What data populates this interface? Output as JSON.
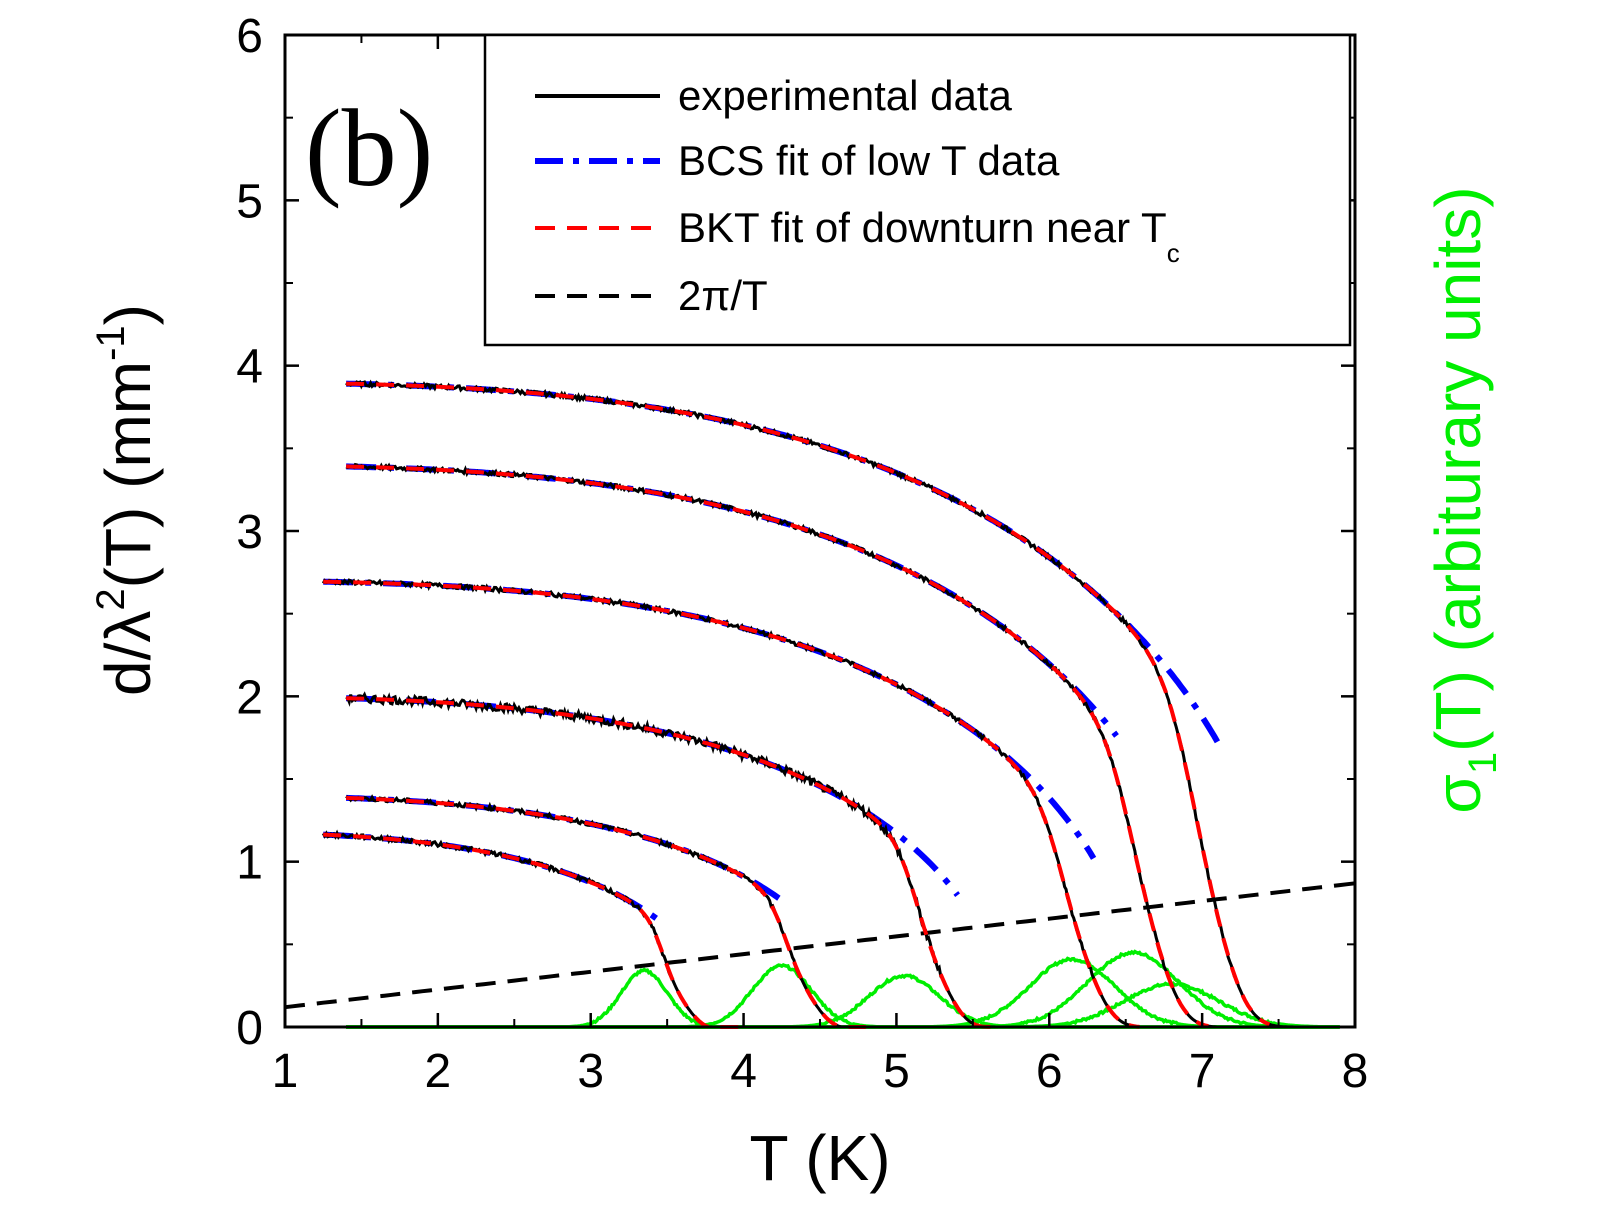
{
  "chart_data": {
    "type": "line",
    "panel_label": "(b)",
    "xlabel": "T   (K)",
    "ylabel_left": "d/λ²(T)   (mm⁻¹)",
    "ylabel_left_parts": {
      "main": "d/λ",
      "sup1": "2",
      "mid": "(T)   (mm",
      "sup2": "-1",
      "end": ")"
    },
    "ylabel_right": "σ₁(T)  (arbiturary units)",
    "ylabel_right_parts": {
      "main": "σ",
      "sub": "1",
      "rest": "(T)  (arbiturary units)"
    },
    "xlim": [
      1,
      8
    ],
    "ylim": [
      0,
      6
    ],
    "x_ticks": [
      "1",
      "2",
      "3",
      "4",
      "5",
      "6",
      "7",
      "8"
    ],
    "y_ticks": [
      "0",
      "1",
      "2",
      "3",
      "4",
      "5",
      "6"
    ],
    "legend": {
      "placement": "top-right",
      "entries": [
        {
          "label": "experimental data",
          "color": "#000000",
          "style": "solid"
        },
        {
          "label": "BCS fit of low T data",
          "color": "#0000ff",
          "style": "dash-dot"
        },
        {
          "label": "BKT fit of downturn near T",
          "label_sub": "c",
          "color": "#ff0000",
          "style": "dashed"
        },
        {
          "label": "2π/T",
          "color": "#000000",
          "style": "dashed"
        }
      ]
    },
    "colors": {
      "experimental": "#000000",
      "bcs": "#0000ff",
      "bkt": "#ff0000",
      "reference": "#000000",
      "sigma": "#00ee00"
    },
    "films": [
      {
        "amp": 3.9,
        "tmin": 1.4,
        "tc": 7.6,
        "tbkt": 6.9,
        "bcs_end": 7.1,
        "sigma_peak": 6.8,
        "sigma_amp": 0.26
      },
      {
        "amp": 3.4,
        "tmin": 1.4,
        "tc": 7.1,
        "tbkt": 6.5,
        "bcs_end": 6.45,
        "sigma_peak": 6.55,
        "sigma_amp": 0.45
      },
      {
        "amp": 2.7,
        "tmin": 1.25,
        "tc": 6.6,
        "tbkt": 6.05,
        "bcs_end": 6.3,
        "sigma_peak": 6.15,
        "sigma_amp": 0.41
      },
      {
        "amp": 2.0,
        "tmin": 1.4,
        "tc": 5.7,
        "tbkt": 5.1,
        "bcs_end": 5.4,
        "sigma_peak": 5.05,
        "sigma_amp": 0.31
      },
      {
        "amp": 1.4,
        "tmin": 1.4,
        "tc": 4.75,
        "tbkt": 4.25,
        "bcs_end": 4.25,
        "sigma_peak": 4.25,
        "sigma_amp": 0.37
      },
      {
        "amp": 1.18,
        "tmin": 1.25,
        "tc": 3.85,
        "tbkt": 3.45,
        "bcs_end": 3.5,
        "sigma_peak": 3.35,
        "sigma_amp": 0.34
      }
    ],
    "reference_line": {
      "label": "2π/T",
      "x_range": [
        1,
        8
      ]
    }
  }
}
